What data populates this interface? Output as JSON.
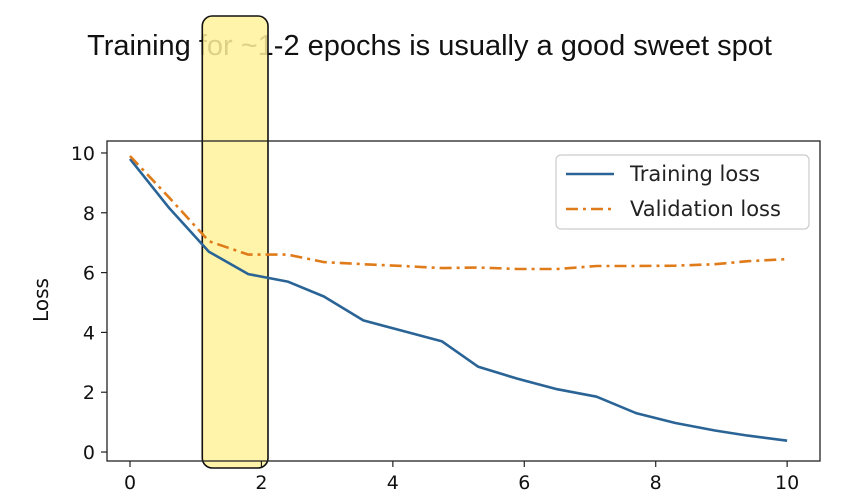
{
  "chart_data": {
    "type": "line",
    "title": "Training for ~1-2 epochs is usually a good sweet spot",
    "xlabel": "",
    "ylabel": "Loss",
    "xlim": [
      -0.35,
      10.5
    ],
    "ylim": [
      -0.3,
      10.4
    ],
    "xticks": [
      0,
      2,
      4,
      6,
      8,
      10
    ],
    "yticks": [
      0,
      2,
      4,
      6,
      8,
      10
    ],
    "legend_position": "top-right",
    "highlight": {
      "x_from": 1.1,
      "x_to": 2.1,
      "color": "#fff29a"
    },
    "series": [
      {
        "name": "Training loss",
        "color": "#2a6496",
        "style": "solid",
        "x": [
          0,
          0.6,
          1.2,
          1.8,
          2.4,
          2.95,
          3.55,
          4.15,
          4.75,
          5.3,
          5.9,
          6.5,
          7.1,
          7.7,
          8.3,
          8.9,
          9.4,
          10
        ],
        "y": [
          9.8,
          8.15,
          6.7,
          5.95,
          5.7,
          5.2,
          4.4,
          4.05,
          3.7,
          2.85,
          2.45,
          2.1,
          1.85,
          1.3,
          0.97,
          0.72,
          0.55,
          0.38
        ]
      },
      {
        "name": "Validation loss",
        "color": "#e07b1a",
        "style": "dashdot",
        "x": [
          0,
          0.6,
          1.2,
          1.8,
          2.4,
          2.95,
          3.55,
          4.15,
          4.75,
          5.3,
          5.9,
          6.5,
          7.1,
          7.7,
          8.3,
          8.9,
          9.4,
          10
        ],
        "y": [
          9.9,
          8.5,
          7.05,
          6.6,
          6.6,
          6.35,
          6.28,
          6.22,
          6.15,
          6.17,
          6.12,
          6.12,
          6.22,
          6.22,
          6.23,
          6.28,
          6.38,
          6.45
        ]
      }
    ]
  }
}
